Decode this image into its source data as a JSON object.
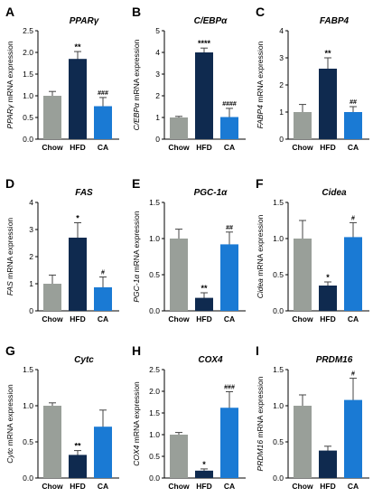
{
  "colors": {
    "Chow": "#999f99",
    "HFD": "#0f2a4f",
    "CA": "#1a7ad4"
  },
  "chart_data": [
    {
      "type": "bar",
      "panel": "A",
      "title": "PPARγ",
      "ylabel_gene": "PPARγ",
      "ylabel_rest": " mRNA expression",
      "categories": [
        "Chow",
        "HFD",
        "CA"
      ],
      "values": [
        1.0,
        1.85,
        0.76
      ],
      "errors": [
        0.1,
        0.17,
        0.2
      ],
      "ylim": [
        0,
        2.5
      ],
      "yticks": [
        "0.0",
        "0.5",
        "1.0",
        "1.5",
        "2.0",
        "2.5"
      ],
      "significance": [
        "",
        "**",
        "###"
      ]
    },
    {
      "type": "bar",
      "panel": "B",
      "title": "C/EBPα",
      "ylabel_gene": "C/EBPα",
      "ylabel_rest": " mRNA expression",
      "categories": [
        "Chow",
        "HFD",
        "CA"
      ],
      "values": [
        1.0,
        4.0,
        1.02
      ],
      "errors": [
        0.05,
        0.2,
        0.4
      ],
      "ylim": [
        0,
        5
      ],
      "yticks": [
        "0",
        "1",
        "2",
        "3",
        "4",
        "5"
      ],
      "significance": [
        "",
        "****",
        "####"
      ]
    },
    {
      "type": "bar",
      "panel": "C",
      "title": "FABP4",
      "ylabel_gene": "FABP4",
      "ylabel_rest": " mRNA expression",
      "categories": [
        "Chow",
        "HFD",
        "CA"
      ],
      "values": [
        1.0,
        2.6,
        1.0
      ],
      "errors": [
        0.28,
        0.4,
        0.2
      ],
      "ylim": [
        0,
        4
      ],
      "yticks": [
        "0",
        "1",
        "2",
        "3",
        "4"
      ],
      "significance": [
        "",
        "**",
        "##"
      ]
    },
    {
      "type": "bar",
      "panel": "D",
      "title": "FAS",
      "ylabel_gene": "FAS",
      "ylabel_rest": " mRNA expression",
      "categories": [
        "Chow",
        "HFD",
        "CA"
      ],
      "values": [
        1.0,
        2.7,
        0.87
      ],
      "errors": [
        0.32,
        0.55,
        0.38
      ],
      "ylim": [
        0,
        4
      ],
      "yticks": [
        "0",
        "1",
        "2",
        "3",
        "4"
      ],
      "significance": [
        "",
        "*",
        "#"
      ]
    },
    {
      "type": "bar",
      "panel": "E",
      "title": "PGC-1α",
      "ylabel_gene": "PGC-1α",
      "ylabel_rest": " mRNA expression",
      "categories": [
        "Chow",
        "HFD",
        "CA"
      ],
      "values": [
        1.0,
        0.18,
        0.92
      ],
      "errors": [
        0.13,
        0.07,
        0.17
      ],
      "ylim": [
        0,
        1.5
      ],
      "yticks": [
        "0.0",
        "0.5",
        "1.0",
        "1.5"
      ],
      "significance": [
        "",
        "**",
        "##"
      ]
    },
    {
      "type": "bar",
      "panel": "F",
      "title": "Cidea",
      "ylabel_gene": "Cidea",
      "ylabel_rest": " mRNA expression",
      "categories": [
        "Chow",
        "HFD",
        "CA"
      ],
      "values": [
        1.0,
        0.35,
        1.02
      ],
      "errors": [
        0.25,
        0.05,
        0.2
      ],
      "ylim": [
        0,
        1.5
      ],
      "yticks": [
        "0.0",
        "0.5",
        "1.0",
        "1.5"
      ],
      "significance": [
        "",
        "*",
        "#"
      ]
    },
    {
      "type": "bar",
      "panel": "G",
      "title": "Cytc",
      "ylabel_gene": "Cytc",
      "ylabel_rest": " mRNA expression",
      "categories": [
        "Chow",
        "HFD",
        "CA"
      ],
      "values": [
        1.0,
        0.32,
        0.71
      ],
      "errors": [
        0.04,
        0.06,
        0.23
      ],
      "ylim": [
        0,
        1.5
      ],
      "yticks": [
        "0.0",
        "0.5",
        "1.0",
        "1.5"
      ],
      "significance": [
        "",
        "**",
        ""
      ]
    },
    {
      "type": "bar",
      "panel": "H",
      "title": "COX4",
      "ylabel_gene": "COX4",
      "ylabel_rest": " mRNA expression",
      "categories": [
        "Chow",
        "HFD",
        "CA"
      ],
      "values": [
        1.0,
        0.17,
        1.62
      ],
      "errors": [
        0.05,
        0.04,
        0.37
      ],
      "ylim": [
        0,
        2.5
      ],
      "yticks": [
        "0.0",
        "0.5",
        "1.0",
        "1.5",
        "2.0",
        "2.5"
      ],
      "significance": [
        "",
        "*",
        "###"
      ]
    },
    {
      "type": "bar",
      "panel": "I",
      "title": "PRDM16",
      "ylabel_gene": "PRDM16",
      "ylabel_rest": " mRNA expression",
      "categories": [
        "Chow",
        "HFD",
        "CA"
      ],
      "values": [
        1.0,
        0.38,
        1.08
      ],
      "errors": [
        0.15,
        0.06,
        0.3
      ],
      "ylim": [
        0,
        1.5
      ],
      "yticks": [
        "0.0",
        "0.5",
        "1.0",
        "1.5"
      ],
      "significance": [
        "",
        "",
        "#"
      ]
    }
  ]
}
